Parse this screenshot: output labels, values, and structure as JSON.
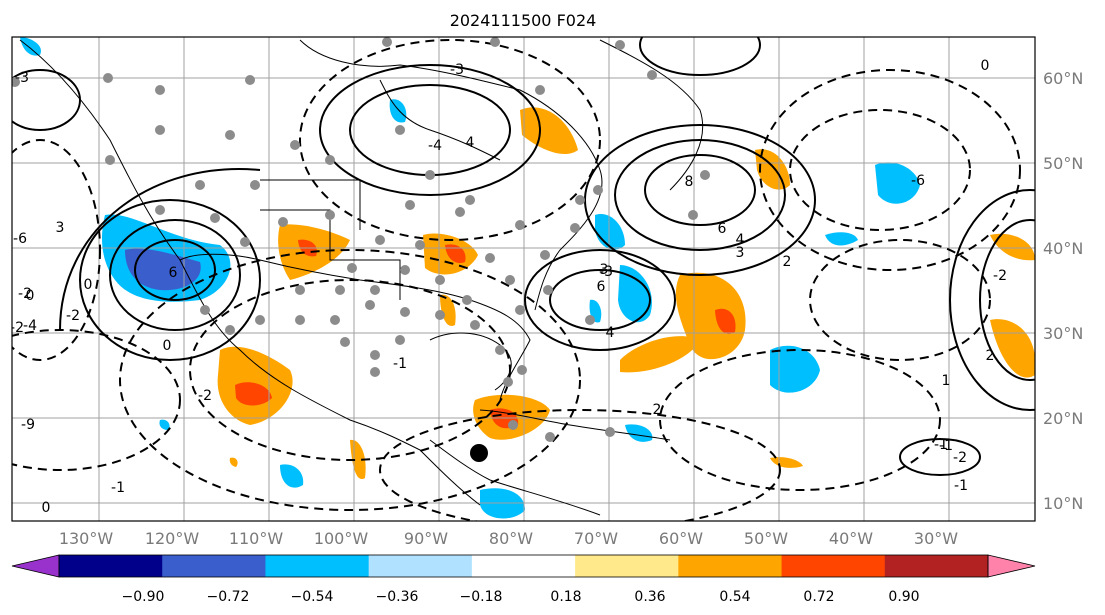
{
  "title": "2024111500 F024",
  "lon_labels": [
    "130°W",
    "120°W",
    "110°W",
    "100°W",
    "90°W",
    "80°W",
    "70°W",
    "60°W",
    "50°W",
    "40°W",
    "30°W"
  ],
  "lat_labels": [
    "60°N",
    "50°N",
    "40°N",
    "30°N",
    "20°N",
    "10°N"
  ],
  "colorbar": {
    "ticks": [
      "−0.90",
      "−0.72",
      "−0.54",
      "−0.36",
      "−0.18",
      "0.18",
      "0.36",
      "0.54",
      "0.72",
      "0.90"
    ],
    "colors": [
      "#9932cc",
      "#00008b",
      "#3a5fcd",
      "#00bfff",
      "#b0e2ff",
      "#ffffff",
      "#ffe98a",
      "#ffa500",
      "#ff4500",
      "#b22222",
      "#ff82ab"
    ]
  },
  "contour_labels": [
    "6",
    "-2",
    "3",
    "-3",
    "4",
    "-4",
    "8",
    "6",
    "4",
    "3",
    "2",
    "-6",
    "6",
    "-3",
    "3",
    "4",
    "2",
    "-3",
    "0",
    "-2",
    "-2",
    "-1",
    "2",
    "0",
    "-2",
    "1",
    "-1",
    "-1",
    "0",
    "-6",
    "-2",
    "-4",
    "0",
    "-1",
    "-2",
    "-9",
    "-1",
    "0"
  ],
  "shading": {
    "positive": "#ffa500",
    "strong_positive": "#ff4500",
    "negative": "#00bfff",
    "strong_negative": "#3a5fcd"
  },
  "marker_color": "#8c8c8c"
}
